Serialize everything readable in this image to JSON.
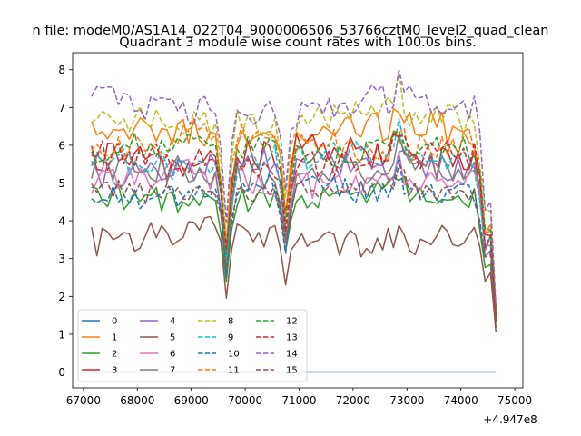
{
  "chart_data": {
    "type": "line",
    "suptitle": "n file: modeM0/AS1A14_022T04_9000006506_53766cztM0_level2_quad_clean",
    "title": "Quadrant 3 module wise count rates with 100.0s bins.",
    "xlabel": "",
    "ylabel": "",
    "x_offset_label": "+4.947e8",
    "xlim": [
      66800,
      75150
    ],
    "ylim": [
      -0.42,
      8.45
    ],
    "xticks": [
      67000,
      68000,
      69000,
      70000,
      71000,
      72000,
      73000,
      74000,
      75000
    ],
    "xtick_labels": [
      "67000",
      "68000",
      "69000",
      "70000",
      "71000",
      "72000",
      "73000",
      "74000",
      "75000"
    ],
    "yticks": [
      0,
      1,
      2,
      3,
      4,
      5,
      6,
      7,
      8
    ],
    "ytick_labels": [
      "0",
      "1",
      "2",
      "3",
      "4",
      "5",
      "6",
      "7",
      "8"
    ],
    "x_start": 67150,
    "x_step": 100,
    "x_end": 74650,
    "grid": false,
    "legend_position": "lower-left",
    "legend_ncol": 4,
    "series": [
      {
        "name": "0",
        "color": "#1f77b4",
        "dash": "solid",
        "level": 0.0,
        "amp": 0.0,
        "seed": 0
      },
      {
        "name": "1",
        "color": "#ff7f0e",
        "dash": "solid",
        "level": 6.3,
        "amp": 0.45,
        "seed": 1
      },
      {
        "name": "2",
        "color": "#2ca02c",
        "dash": "solid",
        "level": 4.6,
        "amp": 0.35,
        "seed": 2
      },
      {
        "name": "3",
        "color": "#d62728",
        "dash": "solid",
        "level": 5.7,
        "amp": 0.45,
        "seed": 3
      },
      {
        "name": "4",
        "color": "#9467bd",
        "dash": "solid",
        "level": 5.4,
        "amp": 0.4,
        "seed": 4
      },
      {
        "name": "5",
        "color": "#8c564b",
        "dash": "solid",
        "level": 3.6,
        "amp": 0.4,
        "seed": 5
      },
      {
        "name": "6",
        "color": "#e377c2",
        "dash": "solid",
        "level": 5.1,
        "amp": 0.4,
        "seed": 6
      },
      {
        "name": "7",
        "color": "#7f7f7f",
        "dash": "solid",
        "level": 5.3,
        "amp": 0.4,
        "seed": 7
      },
      {
        "name": "8",
        "color": "#bcbd22",
        "dash": "dashed",
        "level": 6.7,
        "amp": 0.4,
        "seed": 8
      },
      {
        "name": "9",
        "color": "#17becf",
        "dash": "dashed",
        "level": 5.6,
        "amp": 0.4,
        "seed": 9
      },
      {
        "name": "10",
        "color": "#1f77b4",
        "dash": "dashed",
        "level": 4.8,
        "amp": 0.35,
        "seed": 10
      },
      {
        "name": "11",
        "color": "#ff7f0e",
        "dash": "dashed",
        "level": 6.1,
        "amp": 0.4,
        "seed": 11
      },
      {
        "name": "12",
        "color": "#2ca02c",
        "dash": "dashed",
        "level": 5.9,
        "amp": 0.35,
        "seed": 12
      },
      {
        "name": "13",
        "color": "#d62728",
        "dash": "dashed",
        "level": 5.6,
        "amp": 0.4,
        "seed": 13
      },
      {
        "name": "14",
        "color": "#9467bd",
        "dash": "dashed",
        "level": 7.0,
        "amp": 0.45,
        "seed": 14
      },
      {
        "name": "15",
        "color": "#8c564b",
        "dash": "dashed",
        "level": 4.8,
        "amp": 0.3,
        "seed": 15
      }
    ],
    "features": [
      {
        "x": 69650,
        "factor": 0.55
      },
      {
        "x": 70750,
        "factor": 0.68
      },
      {
        "x": 72850,
        "factor": 1.13
      },
      {
        "x": 74450,
        "factor": 0.62
      },
      {
        "x": 74650,
        "factor": 0.27
      }
    ]
  }
}
